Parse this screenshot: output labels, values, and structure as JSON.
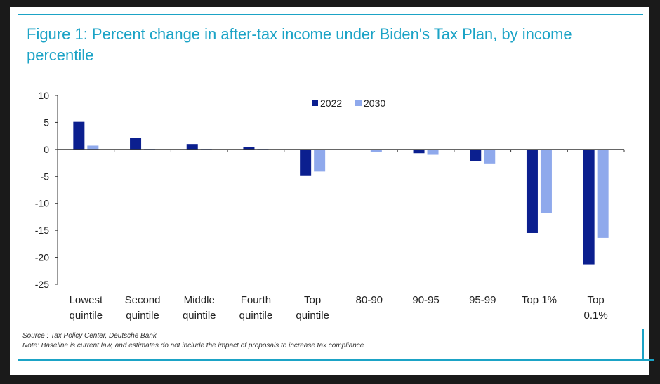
{
  "title": "Figure 1: Percent change in after-tax income under Biden's Tax Plan, by income percentile",
  "source": "Source : Tax Policy Center, Deutsche Bank",
  "note": "Note: Baseline is current law, and estimates do not include the impact of proposals to increase tax compliance",
  "colors": {
    "accent": "#1ba3c6",
    "series_2022": "#0b1f8f",
    "series_2030": "#8fa9ec"
  },
  "chart_data": {
    "type": "bar",
    "title": "Figure 1: Percent change in after-tax income under Biden's Tax Plan, by income percentile",
    "xlabel": "",
    "ylabel": "",
    "ylim": [
      -25,
      10
    ],
    "yticks": [
      "10",
      "5",
      "0",
      "-5",
      "-10",
      "-15",
      "-20",
      "-25"
    ],
    "legend_position": "top-center",
    "categories": [
      [
        "Lowest",
        "quintile"
      ],
      [
        "Second",
        "quintile"
      ],
      [
        "Middle",
        "quintile"
      ],
      [
        "Fourth",
        "quintile"
      ],
      [
        "Top",
        "quintile"
      ],
      [
        "80-90"
      ],
      [
        "90-95"
      ],
      [
        "95-99"
      ],
      [
        "Top 1%"
      ],
      [
        "Top",
        "0.1%"
      ]
    ],
    "series": [
      {
        "name": "2022",
        "values": [
          5.1,
          2.1,
          1.0,
          0.4,
          -4.8,
          null,
          -0.7,
          -2.2,
          -15.5,
          -21.3
        ]
      },
      {
        "name": "2030",
        "values": [
          0.7,
          0.1,
          0.1,
          0.1,
          -4.1,
          -0.5,
          -1.0,
          -2.6,
          -11.8,
          -16.4
        ]
      }
    ]
  }
}
